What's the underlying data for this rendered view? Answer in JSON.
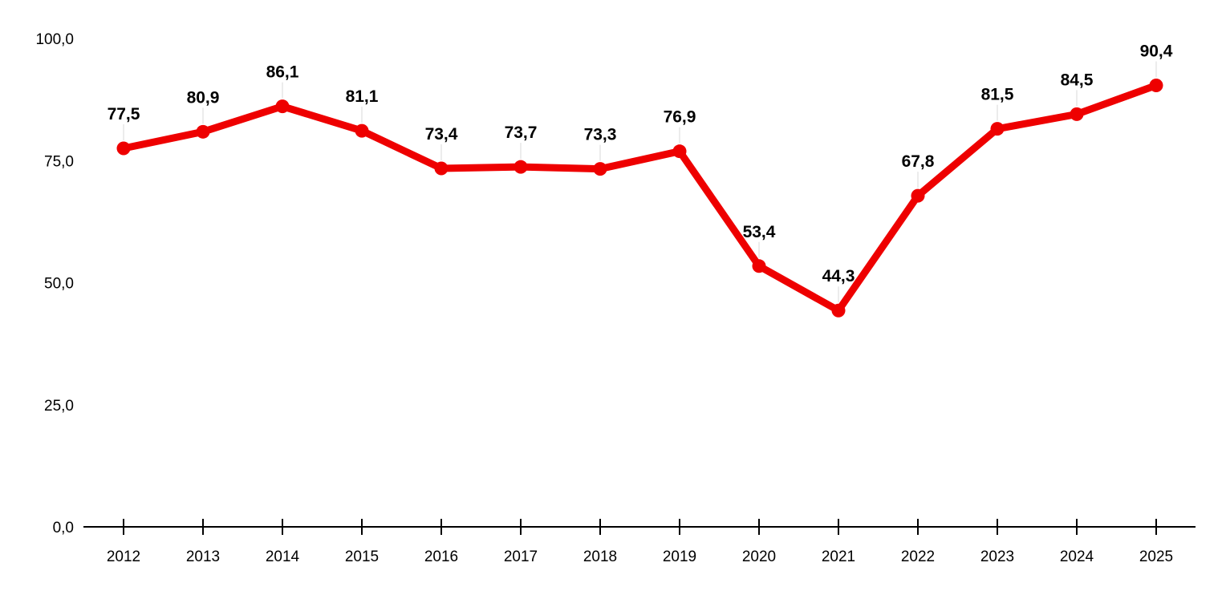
{
  "chart_data": {
    "type": "line",
    "title": "",
    "xlabel": "",
    "ylabel": "",
    "categories": [
      "2012",
      "2013",
      "2014",
      "2015",
      "2016",
      "2017",
      "2018",
      "2019",
      "2020",
      "2021",
      "2022",
      "2023",
      "2024",
      "2025"
    ],
    "series": [
      {
        "values": [
          77.5,
          80.9,
          86.1,
          81.1,
          73.4,
          73.7,
          73.3,
          76.9,
          53.4,
          44.3,
          67.8,
          81.5,
          84.5,
          90.4
        ],
        "labels": [
          "77,5",
          "80,9",
          "86,1",
          "81,1",
          "73,4",
          "73,7",
          "73,3",
          "76,9",
          "53,4",
          "44,3",
          "67,8",
          "81,5",
          "84,5",
          "90,4"
        ],
        "color": "#ee0000"
      }
    ],
    "ylim": [
      0,
      100
    ],
    "yticks": [
      0,
      25,
      50,
      75,
      100
    ],
    "ytick_labels": [
      "0,0",
      "25,0",
      "50,0",
      "75,0",
      "100,0"
    ],
    "grid": false,
    "legend": "none",
    "markers": true,
    "data_labels": true
  }
}
